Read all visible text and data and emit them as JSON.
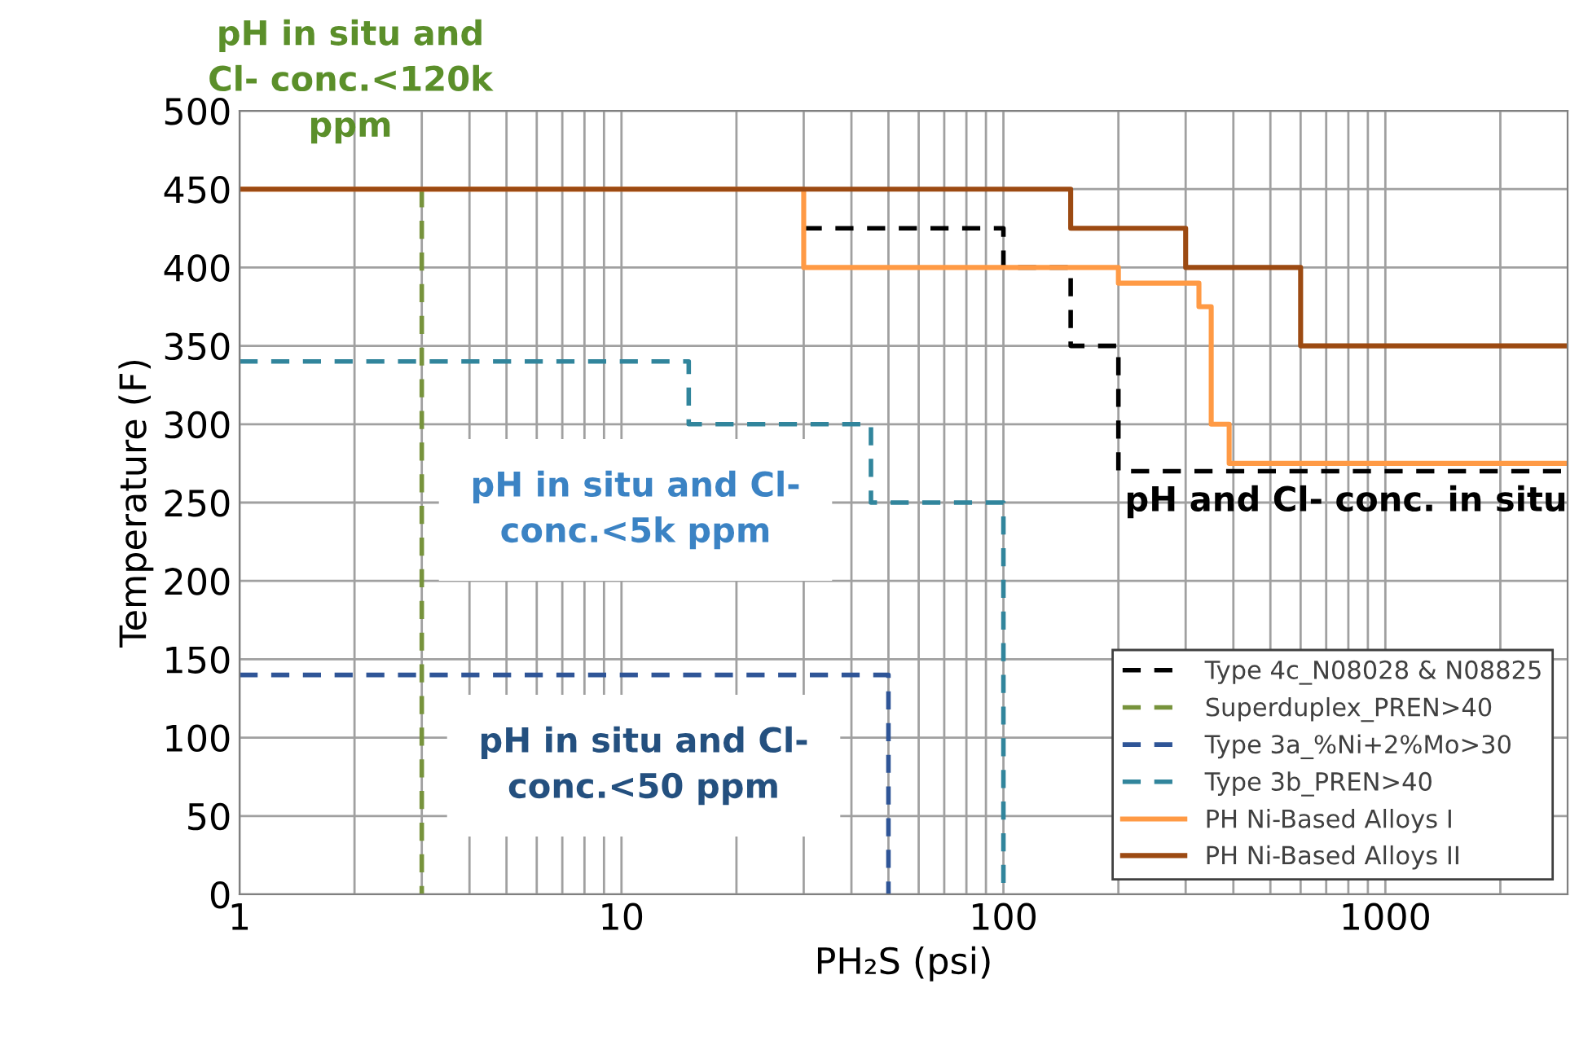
{
  "chart_data": {
    "type": "step",
    "xlabel": "PH₂S (psi)",
    "ylabel": "Temperature (F)",
    "log": "x",
    "xlim": [
      1,
      3000
    ],
    "xticks": [
      1,
      10,
      100,
      1000
    ],
    "ylim": [
      0,
      500
    ],
    "yticks": [
      0,
      50,
      100,
      150,
      200,
      250,
      300,
      350,
      400,
      450,
      500
    ],
    "grid": true,
    "legend": "bottom right",
    "series": [
      {
        "name": "Type 4c_N08028 & N08825",
        "color": "#000000",
        "line_style": "dashed",
        "x": [
          30,
          100,
          100,
          150,
          150,
          200,
          200,
          3000
        ],
        "values": [
          425,
          425,
          400,
          400,
          350,
          350,
          270,
          270
        ]
      },
      {
        "name": "Superduplex_PREN>40",
        "color": "#77933c",
        "line_style": "dashed",
        "x": [
          3,
          3
        ],
        "values": [
          450,
          0
        ]
      },
      {
        "name": "Type 3a_%Ni+2%Mo>30",
        "color": "#2f5597",
        "line_style": "dashed",
        "x": [
          1,
          50,
          50
        ],
        "values": [
          140,
          140,
          0
        ]
      },
      {
        "name": "Type 3b_PREN>40",
        "color": "#31859c",
        "line_style": "dashed",
        "x": [
          1,
          15,
          15,
          45,
          45,
          100,
          100
        ],
        "values": [
          340,
          340,
          300,
          300,
          250,
          250,
          0
        ]
      },
      {
        "name": "PH Ni-Based Alloys I",
        "color": "#ff9a45",
        "line_style": "solid",
        "x": [
          1,
          30,
          30,
          200,
          200,
          325,
          325,
          350,
          350,
          390,
          390,
          3000
        ],
        "values": [
          450,
          450,
          400,
          400,
          390,
          390,
          375,
          375,
          300,
          300,
          275,
          275
        ]
      },
      {
        "name": "PH Ni-Based Alloys II",
        "color": "#9c4a12",
        "line_style": "solid",
        "x": [
          1,
          150,
          150,
          300,
          300,
          600,
          600,
          3000
        ],
        "values": [
          450,
          450,
          425,
          425,
          400,
          400,
          350,
          350
        ]
      }
    ],
    "annotations": [
      "pH in situ and\nCl- conc.<120k\nppm",
      "pH in situ and Cl-\nconc.<5k ppm",
      "pH in situ and Cl-\nconc.<50 ppm",
      "pH and Cl- conc. in situ"
    ]
  }
}
